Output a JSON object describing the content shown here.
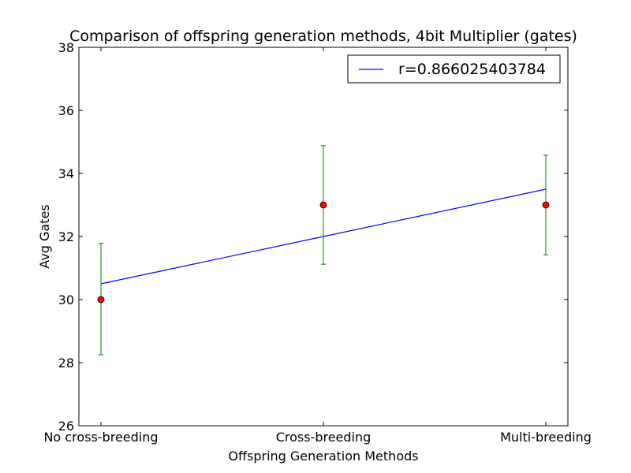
{
  "chart_data": {
    "type": "scatter",
    "title": "Comparison of offspring generation methods, 4bit Multiplier (gates)",
    "xlabel": "Offspring Generation Methods",
    "ylabel": "Avg Gates",
    "categories": [
      "No cross-breeding",
      "Cross-breeding",
      "Multi-breeding"
    ],
    "ylim": [
      26,
      38
    ],
    "yticks": [
      26,
      28,
      30,
      32,
      34,
      36,
      38
    ],
    "grid": false,
    "legend_position": "top-right",
    "points": {
      "values": [
        30,
        33,
        33
      ],
      "error_low": [
        28.25,
        31.12,
        31.42
      ],
      "error_high": [
        31.78,
        34.88,
        34.58
      ],
      "marker_color": "#ff0000",
      "error_color": "#008000"
    },
    "fit_line": {
      "name": "r=0.866025403784",
      "values": [
        30.5,
        32.0,
        33.5
      ],
      "color": "#0000ff"
    }
  }
}
